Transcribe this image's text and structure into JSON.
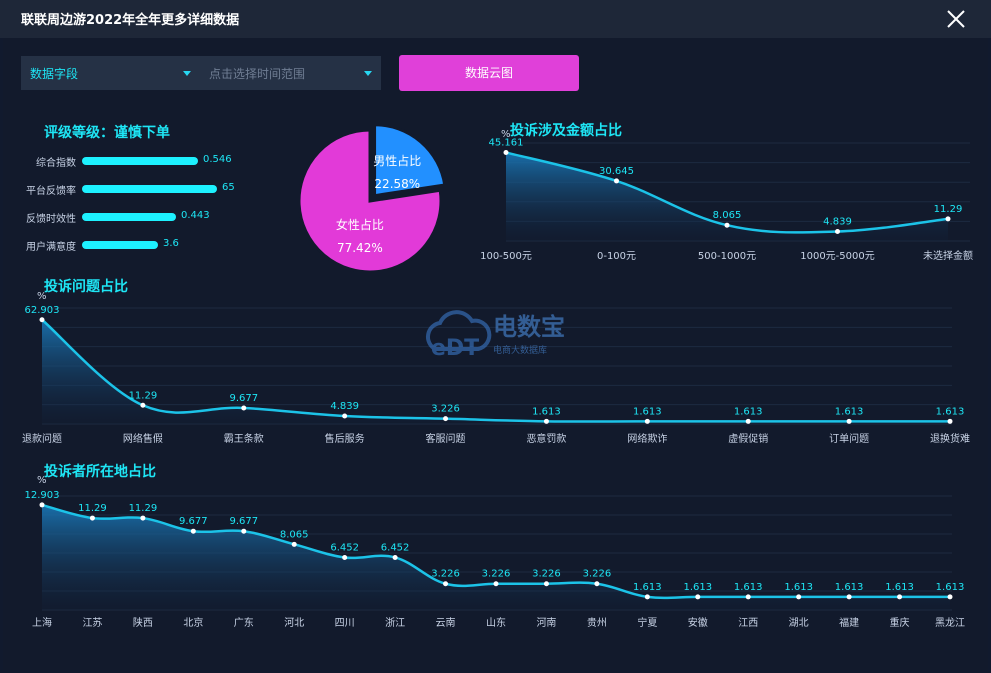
{
  "window": {
    "title": "联联周边游2022年全年更多详细数据"
  },
  "filters": {
    "field_select": "数据字段",
    "time_select_placeholder": "点击选择时间范围",
    "cloud_button": "数据云图"
  },
  "rating": {
    "title": "评级等级：谨慎下单",
    "items": [
      {
        "label": "综合指数",
        "value": 0.546,
        "display": "0.546",
        "fill": 0.84
      },
      {
        "label": "平台反馈率",
        "value": 65,
        "display": "65",
        "fill": 0.98
      },
      {
        "label": "反馈时效性",
        "value": 0.443,
        "display": "0.443",
        "fill": 0.68
      },
      {
        "label": "用户满意度",
        "value": 3.6,
        "display": "3.6",
        "fill": 0.55
      }
    ]
  },
  "watermark": {
    "logo_text": "eDT",
    "name": "电数宝",
    "subtitle": "电商大数据库"
  },
  "colors": {
    "accent": "#1ee6f5",
    "pink": "#e03ad8",
    "blue": "#1f8fff",
    "line": "#1cc3e8"
  },
  "chart_data": [
    {
      "type": "pie",
      "categories": [
        "男性占比",
        "女性占比"
      ],
      "values": [
        22.58,
        77.42
      ],
      "labels": [
        "22.58%",
        "77.42%"
      ],
      "colors": [
        "#2290ff",
        "#e23ad8"
      ]
    },
    {
      "type": "area",
      "title": "投诉涉及金额占比",
      "ylabel": "%",
      "categories": [
        "100-500元",
        "0-100元",
        "500-1000元",
        "1000元-5000元",
        "未选择金额"
      ],
      "values": [
        45.161,
        30.645,
        8.065,
        4.839,
        11.29
      ],
      "labels": [
        "45.161",
        "30.645",
        "8.065",
        "4.839",
        "11.29"
      ],
      "ylim": [
        0,
        50
      ]
    },
    {
      "type": "area",
      "title": "投诉问题占比",
      "ylabel": "%",
      "categories": [
        "退款问题",
        "网络售假",
        "霸王条款",
        "售后服务",
        "客服问题",
        "恶意罚款",
        "网络欺诈",
        "虚假促销",
        "订单问题",
        "退换货难"
      ],
      "values": [
        62.903,
        11.29,
        9.677,
        4.839,
        3.226,
        1.613,
        1.613,
        1.613,
        1.613,
        1.613
      ],
      "labels": [
        "62.903",
        "11.29",
        "9.677",
        "4.839",
        "3.226",
        "1.613",
        "1.613",
        "1.613",
        "1.613",
        "1.613"
      ],
      "ylim": [
        0,
        70
      ]
    },
    {
      "type": "area",
      "title": "投诉者所在地占比",
      "ylabel": "%",
      "categories": [
        "上海",
        "江苏",
        "陕西",
        "北京",
        "广东",
        "河北",
        "四川",
        "浙江",
        "云南",
        "山东",
        "河南",
        "贵州",
        "宁夏",
        "安徽",
        "江西",
        "湖北",
        "福建",
        "重庆",
        "黑龙江"
      ],
      "values": [
        12.903,
        11.29,
        11.29,
        9.677,
        9.677,
        8.065,
        6.452,
        6.452,
        3.226,
        3.226,
        3.226,
        3.226,
        1.613,
        1.613,
        1.613,
        1.613,
        1.613,
        1.613,
        1.613
      ],
      "labels": [
        "12.903",
        "11.29",
        "11.29",
        "9.677",
        "9.677",
        "8.065",
        "6.452",
        "6.452",
        "3.226",
        "3.226",
        "3.226",
        "3.226",
        "1.613",
        "1.613",
        "1.613",
        "1.613",
        "1.613",
        "1.613",
        "1.613"
      ],
      "ylim": [
        0,
        14
      ]
    }
  ]
}
